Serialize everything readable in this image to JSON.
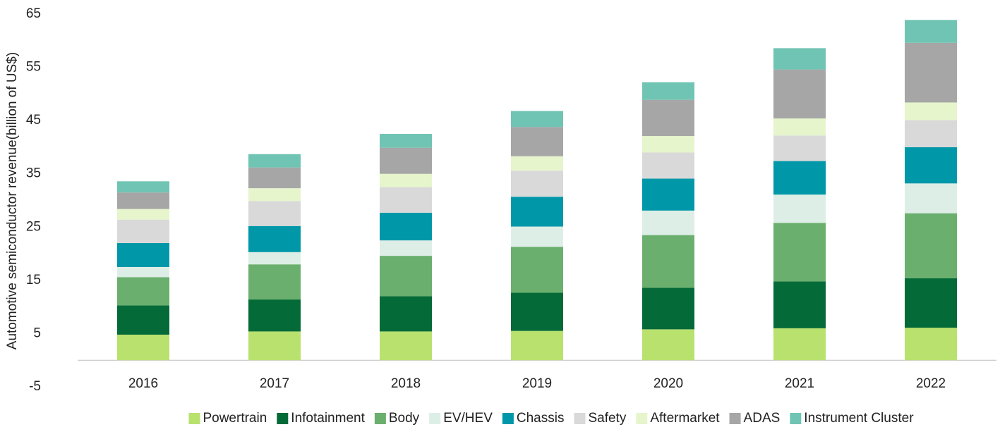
{
  "chart_data": {
    "type": "bar",
    "stacked": true,
    "y_label": "Automotive semiconductor revenue(billion  of US$)",
    "categories": [
      "2016",
      "2017",
      "2018",
      "2019",
      "2020",
      "2021",
      "2022"
    ],
    "ylim": [
      -5,
      65
    ],
    "yticks": [
      -5,
      5,
      15,
      25,
      35,
      45,
      55,
      65
    ],
    "grid": false,
    "legend": "bottom",
    "series": [
      {
        "name": "Powertrain",
        "color": "#b8e16e",
        "values": [
          4.8,
          5.4,
          5.4,
          5.5,
          5.8,
          6.0,
          6.1
        ]
      },
      {
        "name": "Infotainment",
        "color": "#046a38",
        "values": [
          5.5,
          6.0,
          6.6,
          7.2,
          7.8,
          8.8,
          9.3
        ]
      },
      {
        "name": "Body",
        "color": "#6aaf6d",
        "values": [
          5.3,
          6.6,
          7.6,
          8.6,
          9.9,
          11.0,
          12.2
        ]
      },
      {
        "name": "EV/HEV",
        "color": "#ddeee6",
        "values": [
          1.9,
          2.3,
          2.9,
          3.8,
          4.6,
          5.3,
          5.6
        ]
      },
      {
        "name": "Chassis",
        "color": "#0097a9",
        "values": [
          4.5,
          4.9,
          5.2,
          5.6,
          6.0,
          6.3,
          6.8
        ]
      },
      {
        "name": "Safety",
        "color": "#d9d9d9",
        "values": [
          4.4,
          4.7,
          4.8,
          4.9,
          4.9,
          4.8,
          5.1
        ]
      },
      {
        "name": "Aftermarket",
        "color": "#e6f5cc",
        "values": [
          2.0,
          2.4,
          2.5,
          2.7,
          3.1,
          3.2,
          3.3
        ]
      },
      {
        "name": "ADAS",
        "color": "#a6a6a6",
        "values": [
          3.1,
          3.9,
          4.9,
          5.5,
          6.8,
          9.2,
          11.2
        ]
      },
      {
        "name": "Instrument Cluster",
        "color": "#70c4b3",
        "values": [
          2.1,
          2.5,
          2.6,
          3.0,
          3.3,
          4.0,
          4.3
        ]
      }
    ]
  }
}
